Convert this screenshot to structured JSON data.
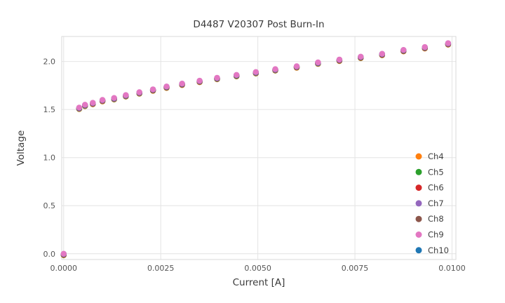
{
  "chart_data": {
    "type": "scatter",
    "title": "D4487 V20307 Post Burn-In",
    "xlabel": "Current [A]",
    "ylabel": "Voltage",
    "xlim": [
      -5e-05,
      0.0101
    ],
    "ylim": [
      -0.06,
      2.26
    ],
    "grid": true,
    "legend_position": "lower right",
    "x_ticks": {
      "values": [
        0.0,
        0.0025,
        0.005,
        0.0075,
        0.01
      ],
      "labels": [
        "0.0000",
        "0.0025",
        "0.0050",
        "0.0075",
        "0.0100"
      ]
    },
    "y_ticks": {
      "values": [
        0.0,
        0.5,
        1.0,
        1.5,
        2.0
      ],
      "labels": [
        "0.0",
        "0.5",
        "1.0",
        "1.5",
        "2.0"
      ]
    },
    "x": [
      0.0,
      0.0004,
      0.00055,
      0.00075,
      0.001,
      0.0013,
      0.0016,
      0.00195,
      0.0023,
      0.00265,
      0.00305,
      0.0035,
      0.00395,
      0.00445,
      0.00495,
      0.00545,
      0.006,
      0.00655,
      0.0071,
      0.00765,
      0.0082,
      0.00875,
      0.0093,
      0.0099
    ],
    "series": [
      {
        "name": "Ch4",
        "color": "#ff7f0e",
        "values": [
          0.0,
          1.52,
          1.55,
          1.57,
          1.6,
          1.62,
          1.65,
          1.68,
          1.71,
          1.74,
          1.77,
          1.8,
          1.83,
          1.86,
          1.89,
          1.92,
          1.95,
          1.99,
          2.02,
          2.05,
          2.08,
          2.12,
          2.15,
          2.19
        ]
      },
      {
        "name": "Ch5",
        "color": "#2ca02c",
        "values": [
          0.0,
          1.52,
          1.55,
          1.57,
          1.6,
          1.62,
          1.65,
          1.68,
          1.71,
          1.74,
          1.77,
          1.8,
          1.83,
          1.86,
          1.89,
          1.92,
          1.95,
          1.99,
          2.02,
          2.05,
          2.08,
          2.12,
          2.15,
          2.19
        ]
      },
      {
        "name": "Ch6",
        "color": "#d62728",
        "values": [
          0.0,
          1.52,
          1.55,
          1.57,
          1.6,
          1.62,
          1.65,
          1.68,
          1.71,
          1.74,
          1.77,
          1.8,
          1.83,
          1.86,
          1.89,
          1.92,
          1.95,
          1.99,
          2.02,
          2.05,
          2.08,
          2.12,
          2.15,
          2.19
        ]
      },
      {
        "name": "Ch7",
        "color": "#9467bd",
        "values": [
          0.0,
          1.52,
          1.55,
          1.57,
          1.6,
          1.62,
          1.65,
          1.68,
          1.71,
          1.74,
          1.77,
          1.8,
          1.83,
          1.86,
          1.89,
          1.92,
          1.95,
          1.99,
          2.02,
          2.05,
          2.08,
          2.12,
          2.15,
          2.19
        ]
      },
      {
        "name": "Ch8",
        "color": "#8c564b",
        "values": [
          0.0,
          1.52,
          1.55,
          1.57,
          1.6,
          1.62,
          1.65,
          1.68,
          1.71,
          1.74,
          1.77,
          1.8,
          1.83,
          1.86,
          1.89,
          1.92,
          1.95,
          1.99,
          2.02,
          2.05,
          2.08,
          2.12,
          2.15,
          2.19
        ]
      },
      {
        "name": "Ch9",
        "color": "#e377c2",
        "values": [
          0.0,
          1.52,
          1.55,
          1.57,
          1.6,
          1.62,
          1.65,
          1.68,
          1.71,
          1.74,
          1.77,
          1.8,
          1.83,
          1.86,
          1.89,
          1.92,
          1.95,
          1.99,
          2.02,
          2.05,
          2.08,
          2.12,
          2.15,
          2.19
        ]
      },
      {
        "name": "Ch10",
        "color": "#1f77b4",
        "values": [
          0.0,
          1.52,
          1.55,
          1.57,
          1.6,
          1.62,
          1.65,
          1.68,
          1.71,
          1.74,
          1.77,
          1.8,
          1.83,
          1.86,
          1.89,
          1.92,
          1.95,
          1.99,
          2.02,
          2.05,
          2.08,
          2.12,
          2.15,
          2.19
        ]
      }
    ],
    "draw_order": [
      0,
      1,
      2,
      3,
      4,
      6,
      5
    ],
    "marker_size": 4.2,
    "style": {
      "background": "#ffffff",
      "grid_color": "#e4e4e4",
      "border_color": "#d9d9d9",
      "title_color": "#3a3a3a",
      "tick_color": "#555555",
      "legend_text_color": "#404040"
    }
  }
}
